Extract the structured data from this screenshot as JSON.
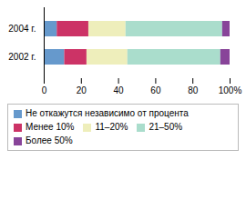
{
  "chart_data": {
    "type": "bar",
    "orientation": "horizontal",
    "stacked": true,
    "categories": [
      "2002 г.",
      "2004 г."
    ],
    "series": [
      {
        "name": "Не откажутся независимо от процента",
        "color": "#6699cc",
        "values": [
          11,
          7
        ]
      },
      {
        "name": "Менее 10%",
        "color": "#cc3366",
        "values": [
          12,
          17
        ]
      },
      {
        "name": "11–20%",
        "color": "#eeeebb",
        "values": [
          22,
          20
        ]
      },
      {
        "name": "21–50%",
        "color": "#aaddcc",
        "values": [
          50,
          52
        ]
      },
      {
        "name": "Более 50%",
        "color": "#884499",
        "values": [
          5,
          4
        ]
      }
    ],
    "xlim": [
      0,
      100
    ],
    "xticks": [
      0,
      20,
      40,
      60,
      80,
      {
        "value": 100,
        "label": "100%"
      }
    ],
    "grid": false,
    "legend": "bottom"
  }
}
